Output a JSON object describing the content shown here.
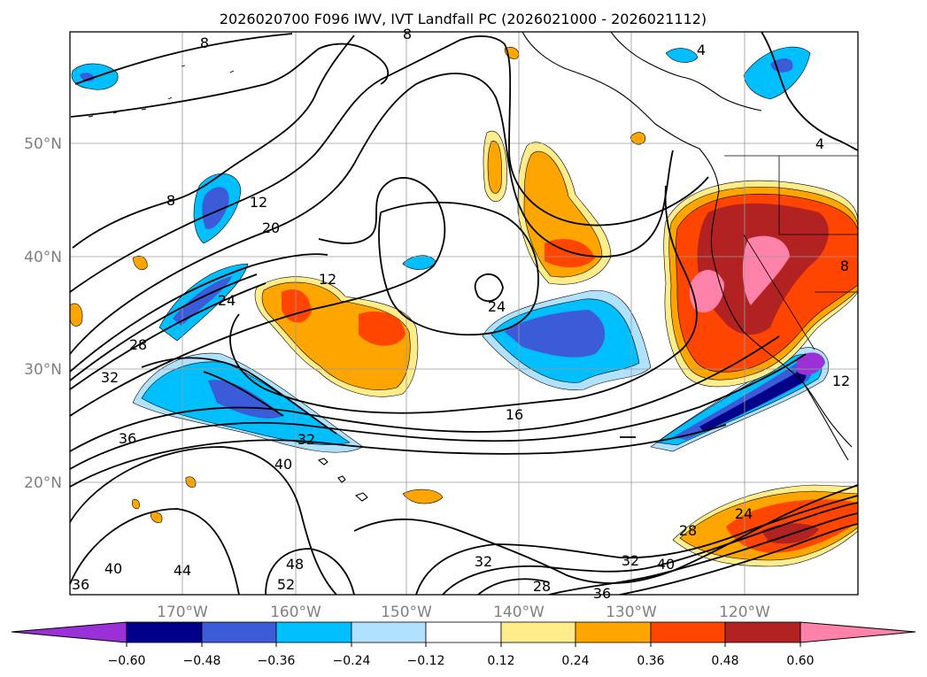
{
  "title": "2026020700 F096 IWV, IVT Landfall PC (2026021000 - 2026021112)",
  "map": {
    "lat_labels": [
      "50°N",
      "40°N",
      "30°N",
      "20°N"
    ],
    "lon_labels": [
      "170°W",
      "160°W",
      "150°W",
      "140°W",
      "130°W",
      "120°W"
    ],
    "contour_labels": [
      "8",
      "8",
      "8",
      "4",
      "4",
      "12",
      "20",
      "12",
      "24",
      "24",
      "28",
      "32",
      "16",
      "36",
      "32",
      "40",
      "24",
      "28",
      "32",
      "40",
      "40",
      "48",
      "44",
      "52",
      "36",
      "32",
      "28",
      "36",
      "12",
      "8"
    ],
    "shading_colors": {
      "negative": [
        "#9b30d9",
        "#000088",
        "#3b5bd9",
        "#00bfff",
        "#b0e2ff"
      ],
      "positive": [
        "#ffec8b",
        "#ffa500",
        "#ff4500",
        "#b22222",
        "#ff82ab"
      ]
    }
  },
  "colorbar": {
    "colors": [
      "#9b30d9",
      "#00008b",
      "#3b5bd9",
      "#00bfff",
      "#b0e2ff",
      "#ffffff",
      "#ffec8b",
      "#ffa500",
      "#ff4500",
      "#b22222",
      "#ff82ab"
    ],
    "tick_labels": [
      "−0.60",
      "−0.48",
      "−0.36",
      "−0.24",
      "−0.12",
      "0.12",
      "0.24",
      "0.36",
      "0.48",
      "0.60"
    ]
  }
}
